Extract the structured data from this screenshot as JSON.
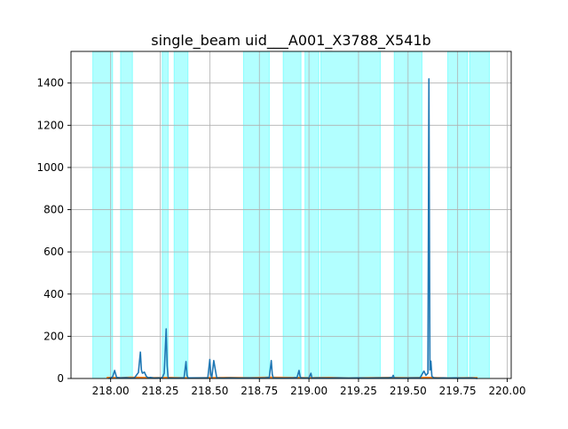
{
  "chart_data": {
    "type": "line",
    "title": "single_beam uid___A001_X3788_X541b",
    "xlabel": "",
    "ylabel": "",
    "xlim": [
      217.8,
      220.02
    ],
    "ylim": [
      0,
      1550
    ],
    "grid": true,
    "x_ticks": [
      218.0,
      218.25,
      218.5,
      218.75,
      219.0,
      219.25,
      219.5,
      219.75,
      220.0
    ],
    "x_tick_labels": [
      "218.00",
      "218.25",
      "218.50",
      "218.75",
      "219.00",
      "219.25",
      "219.50",
      "219.75",
      "220.00"
    ],
    "y_ticks": [
      0,
      200,
      400,
      600,
      800,
      1000,
      1200,
      1400
    ],
    "y_tick_labels": [
      "0",
      "200",
      "400",
      "600",
      "800",
      "1000",
      "1200",
      "1400"
    ],
    "highlight_color": "#00ffff",
    "highlight_regions": [
      [
        217.91,
        218.01
      ],
      [
        218.05,
        218.11
      ],
      [
        218.26,
        218.29
      ],
      [
        218.32,
        218.39
      ],
      [
        218.67,
        218.8
      ],
      [
        218.87,
        218.96
      ],
      [
        218.98,
        219.05
      ],
      [
        219.06,
        219.36
      ],
      [
        219.43,
        219.57
      ],
      [
        219.7,
        219.8
      ],
      [
        219.81,
        219.91
      ]
    ],
    "series": [
      {
        "color": "#1f77b4",
        "x": [
          217.99,
          218.0,
          218.01,
          218.02,
          218.03,
          218.05,
          218.08,
          218.1,
          218.12,
          218.14,
          218.15,
          218.155,
          218.16,
          218.17,
          218.18,
          218.19,
          218.2,
          218.22,
          218.24,
          218.26,
          218.27,
          218.28,
          218.285,
          218.29,
          218.3,
          218.33,
          218.36,
          218.37,
          218.38,
          218.385,
          218.39,
          218.42,
          218.46,
          218.49,
          218.5,
          218.505,
          218.51,
          218.52,
          218.53,
          218.535,
          218.54,
          218.57,
          218.6,
          218.65,
          218.7,
          218.75,
          218.78,
          218.8,
          218.81,
          218.815,
          218.82,
          218.84,
          218.88,
          218.92,
          218.94,
          218.95,
          218.955,
          218.96,
          218.98,
          219.0,
          219.01,
          219.015,
          219.02,
          219.04,
          219.1,
          219.15,
          219.2,
          219.25,
          219.3,
          219.35,
          219.4,
          219.42,
          219.425,
          219.43,
          219.47,
          219.52,
          219.56,
          219.58,
          219.59,
          219.6,
          219.605,
          219.61,
          219.615,
          219.62,
          219.63,
          219.65,
          219.68,
          219.7,
          219.74,
          219.78,
          219.82,
          219.85
        ],
        "y": [
          0,
          3,
          8,
          38,
          5,
          3,
          4,
          2,
          3,
          28,
          125,
          40,
          25,
          30,
          10,
          3,
          5,
          2,
          3,
          3,
          25,
          235,
          60,
          3,
          2,
          2,
          3,
          3,
          80,
          15,
          3,
          3,
          3,
          3,
          90,
          20,
          3,
          85,
          30,
          3,
          3,
          2,
          3,
          2,
          3,
          2,
          3,
          5,
          85,
          20,
          3,
          2,
          2,
          3,
          5,
          38,
          10,
          3,
          2,
          3,
          25,
          3,
          2,
          3,
          2,
          3,
          2,
          3,
          2,
          3,
          3,
          5,
          15,
          3,
          2,
          3,
          3,
          35,
          15,
          25,
          1420,
          40,
          82,
          10,
          3,
          2,
          3,
          2,
          3,
          2,
          3,
          0
        ]
      },
      {
        "color": "#ff7f0e",
        "x": [
          217.98,
          218.05,
          218.1,
          218.2,
          218.3,
          218.4,
          218.5,
          218.6,
          218.7,
          218.8,
          218.9,
          219.0,
          219.1,
          219.2,
          219.3,
          219.4,
          219.5,
          219.6,
          219.7,
          219.8,
          219.85
        ],
        "y": [
          5,
          4,
          6,
          4,
          5,
          3,
          4,
          5,
          4,
          6,
          5,
          4,
          5,
          3,
          4,
          5,
          4,
          5,
          3,
          4,
          4
        ]
      }
    ]
  }
}
